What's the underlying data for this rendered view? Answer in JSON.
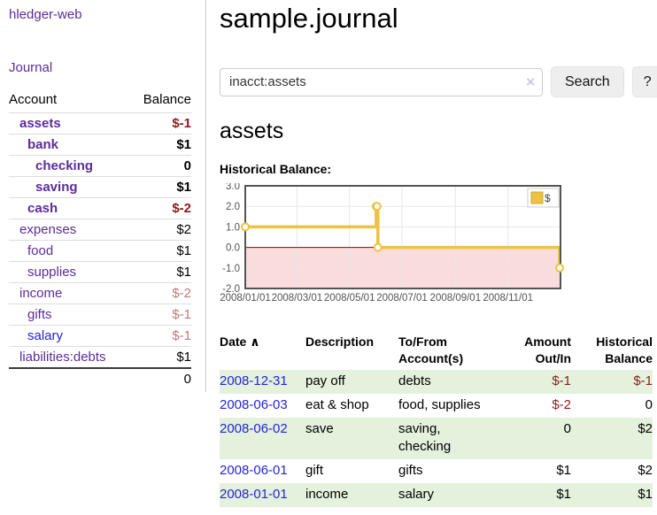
{
  "app": {
    "brand": "hledger-web",
    "nav": {
      "journal": "Journal"
    }
  },
  "sidebar": {
    "header": {
      "account": "Account",
      "balance": "Balance"
    },
    "accounts": [
      {
        "name": "assets",
        "balance": "$-1"
      },
      {
        "name": "bank",
        "balance": "$1"
      },
      {
        "name": "checking",
        "balance": "0"
      },
      {
        "name": "saving",
        "balance": "$1"
      },
      {
        "name": "cash",
        "balance": "$-2"
      },
      {
        "name": "expenses",
        "balance": "$2"
      },
      {
        "name": "food",
        "balance": "$1"
      },
      {
        "name": "supplies",
        "balance": "$1"
      },
      {
        "name": "income",
        "balance": "$-2"
      },
      {
        "name": "gifts",
        "balance": "$-1"
      },
      {
        "name": "salary",
        "balance": "$-1"
      },
      {
        "name": "liabilities:debts",
        "balance": "$1"
      }
    ],
    "total": "0"
  },
  "header": {
    "title": "sample.journal"
  },
  "search": {
    "value": "inacct:assets",
    "clear_icon": "×",
    "search_label": "Search",
    "help_label": "?"
  },
  "account_page": {
    "heading": "assets",
    "chart_title": "Historical Balance:"
  },
  "chart_data": {
    "type": "line",
    "step": true,
    "title": "Historical Balance",
    "legend": "$",
    "legend_position": "top-right",
    "grid": true,
    "xrange": [
      "2008-01-01",
      "2009-01-01"
    ],
    "ylim": [
      -2,
      3
    ],
    "ytick_labels": [
      "3.0",
      "2.0",
      "1.0",
      "0.0",
      "-1.0",
      "-2.0"
    ],
    "yticks": [
      3,
      2,
      1,
      0,
      -1,
      -2
    ],
    "xticks": [
      "2008-01-01",
      "2008-03-01",
      "2008-05-01",
      "2008-07-01",
      "2008-09-01",
      "2008-11-01"
    ],
    "xtick_labels": [
      "2008/01/01",
      "2008/03/01",
      "2008/05/01",
      "2008/07/01",
      "2008/09/01",
      "2008/11/01"
    ],
    "series": [
      {
        "name": "$",
        "color": "#edc240",
        "points": [
          {
            "date": "2008-01-01",
            "value": 1
          },
          {
            "date": "2008-06-01",
            "value": 2
          },
          {
            "date": "2008-06-02",
            "value": 2
          },
          {
            "date": "2008-06-03",
            "value": 0
          },
          {
            "date": "2008-12-31",
            "value": -1
          }
        ]
      }
    ],
    "negative_region_color": "#fbdcdc",
    "zero_line_color": "#8b0000"
  },
  "register": {
    "headers": {
      "date": "Date",
      "sort_indicator": "∧",
      "description": "Description",
      "accounts": "To/From Account(s)",
      "amount": "Amount Out/In",
      "balance": "Historical Balance"
    },
    "rows": [
      {
        "date": "2008-12-31",
        "description": "pay off",
        "accounts": "debts",
        "amount": "$-1",
        "balance": "$-1"
      },
      {
        "date": "2008-06-03",
        "description": "eat & shop",
        "accounts": "food, supplies",
        "amount": "$-2",
        "balance": "0"
      },
      {
        "date": "2008-06-02",
        "description": "save",
        "accounts": "saving, checking",
        "amount": "0",
        "balance": "$2"
      },
      {
        "date": "2008-06-01",
        "description": "gift",
        "accounts": "gifts",
        "amount": "$1",
        "balance": "$2"
      },
      {
        "date": "2008-01-01",
        "description": "income",
        "accounts": "salary",
        "amount": "$1",
        "balance": "$1"
      }
    ]
  },
  "colors": {
    "link_purple": "#5b2d9b",
    "link_blue": "#2323d3",
    "negative_strong": "#8b1c1c",
    "negative_muted": "#bd7b7b",
    "row_stripe_green": "#e4f1dc",
    "chart_line": "#edc240"
  }
}
